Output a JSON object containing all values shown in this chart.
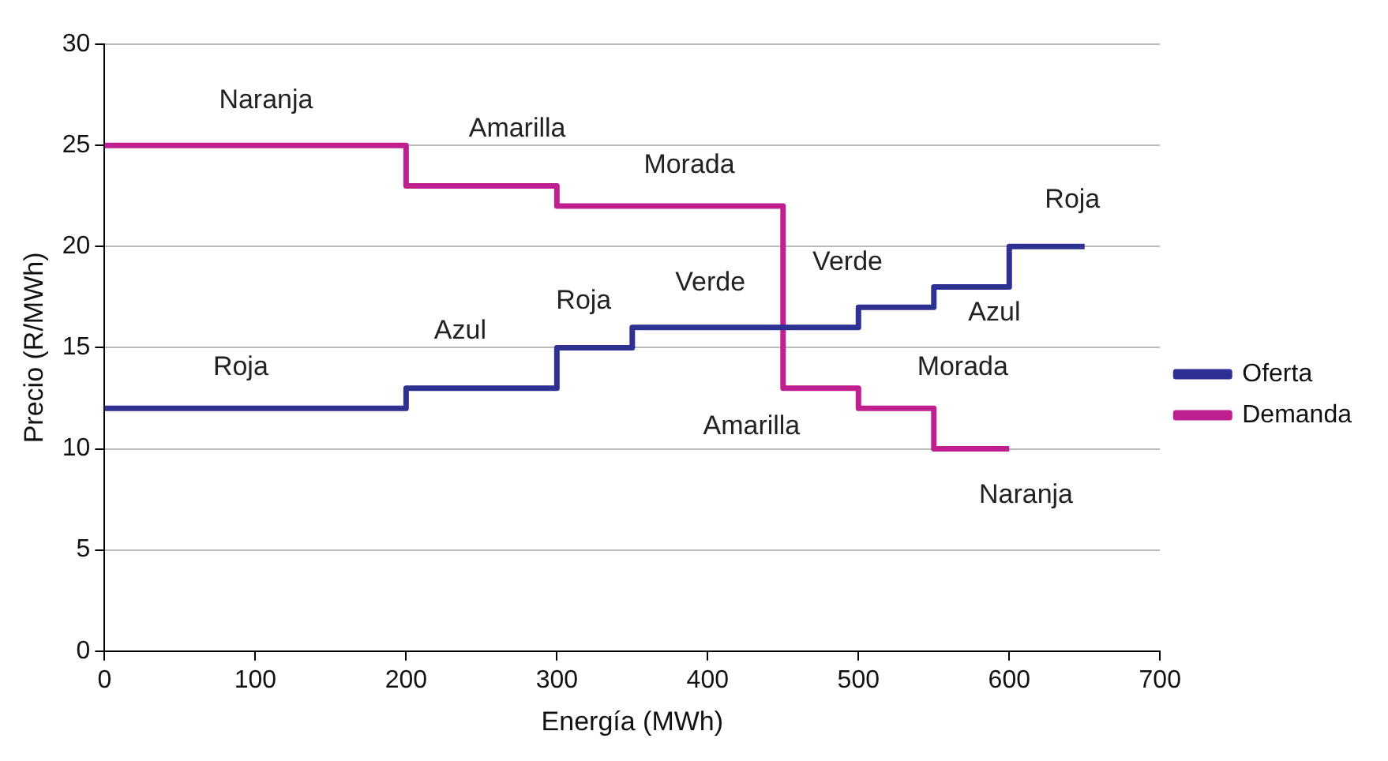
{
  "chart_data": {
    "type": "step",
    "xlabel": "Energía (MWh)",
    "ylabel": "Precio (R/MWh)",
    "xlim": [
      0,
      700
    ],
    "xticks": [
      0,
      100,
      200,
      300,
      400,
      500,
      600,
      700
    ],
    "ylim": [
      0,
      30
    ],
    "yticks": [
      0,
      5,
      10,
      15,
      20,
      25,
      30
    ],
    "grid": "y",
    "legend": "right",
    "line_style": "solid",
    "marker": "none",
    "series": [
      {
        "name": "Oferta",
        "color": "#2e3192",
        "x": [
          0,
          200,
          300,
          350,
          500,
          550,
          600,
          650
        ],
        "values": [
          12,
          13,
          15,
          16,
          17,
          18,
          20,
          20
        ]
      },
      {
        "name": "Demanda",
        "color": "#c0208f",
        "x": [
          0,
          200,
          300,
          450,
          500,
          550,
          600
        ],
        "values": [
          25,
          23,
          22,
          13,
          12,
          10,
          10
        ]
      }
    ],
    "annotations": [
      "Naranja",
      "Amarilla",
      "Morada",
      "Roja",
      "Verde",
      "Verde",
      "Roja",
      "Azul",
      "Azul",
      "Roja",
      "Morada",
      "Amarilla",
      "Naranja"
    ]
  }
}
